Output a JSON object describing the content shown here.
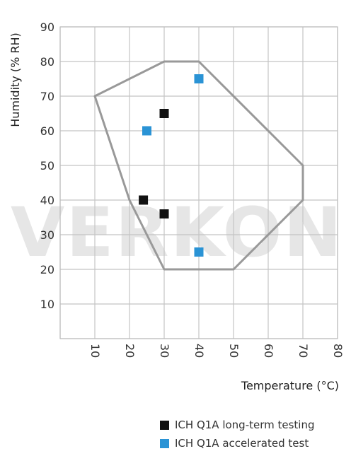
{
  "chart_data": {
    "type": "scatter",
    "watermark": "VERKON",
    "xlabel": "Temperature (°C)",
    "ylabel": "Humidity (% RH)",
    "xlim": [
      0,
      80
    ],
    "ylim": [
      0,
      90
    ],
    "x_ticks": [
      "10",
      "20",
      "30",
      "40",
      "50",
      "60",
      "70",
      "80"
    ],
    "y_ticks": [
      "10",
      "20",
      "30",
      "40",
      "50",
      "60",
      "70",
      "80",
      "90"
    ],
    "grid": true,
    "region_polygon": [
      [
        10,
        70
      ],
      [
        30,
        80
      ],
      [
        40,
        80
      ],
      [
        70,
        50
      ],
      [
        70,
        40
      ],
      [
        50,
        20
      ],
      [
        30,
        20
      ],
      [
        20,
        40
      ]
    ],
    "region_color": "#999999",
    "series": [
      {
        "name": "ICH Q1A long-term testing",
        "color": "#111111",
        "points": [
          [
            30,
            65
          ],
          [
            24,
            40
          ],
          [
            30,
            36
          ]
        ]
      },
      {
        "name": "ICH Q1A accelerated test",
        "color": "#2a93d5",
        "points": [
          [
            40,
            75
          ],
          [
            25,
            60
          ],
          [
            40,
            25
          ]
        ]
      }
    ]
  }
}
